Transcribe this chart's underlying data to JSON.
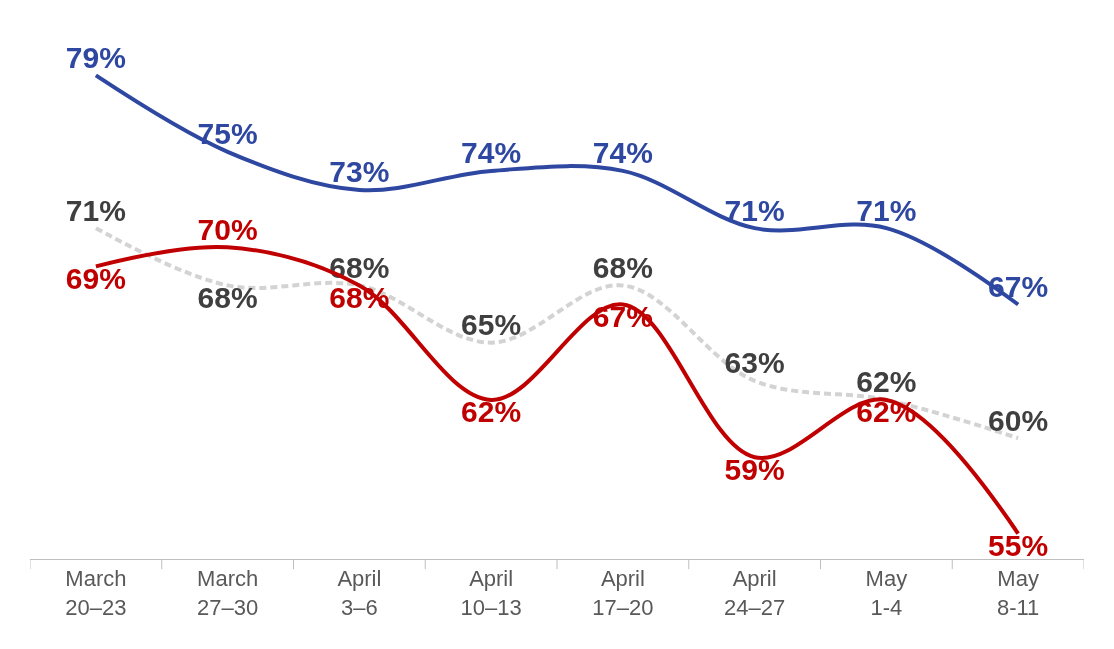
{
  "chart_data": {
    "type": "line",
    "categories": [
      "March 20–23",
      "March 27–30",
      "April 3–6",
      "April 10–13",
      "April 17–20",
      "April 24–27",
      "May 1-4",
      "May 8-11"
    ],
    "series": [
      {
        "color": "#2e47a0",
        "values": [
          79,
          75,
          73,
          74,
          74,
          71,
          71,
          67
        ],
        "value_labels": [
          "79%",
          "75%",
          "73%",
          "74%",
          "74%",
          "71%",
          "71%",
          "67%"
        ]
      },
      {
        "color": "#d3d3d3",
        "line_style": "dashed",
        "values": [
          71,
          68,
          68,
          65,
          68,
          63,
          62,
          60
        ],
        "value_labels": [
          "71%",
          "68%",
          "68%",
          "65%",
          "68%",
          "63%",
          "62%",
          "60%"
        ]
      },
      {
        "color": "#c00000",
        "values": [
          69,
          70,
          68,
          62,
          67,
          59,
          62,
          55
        ],
        "value_labels": [
          "69%",
          "70%",
          "68%",
          "62%",
          "67%",
          "59%",
          "62%",
          "55%"
        ]
      }
    ],
    "grid": false,
    "marker": "none",
    "line_style": "solid",
    "tick_labels": "x"
  }
}
